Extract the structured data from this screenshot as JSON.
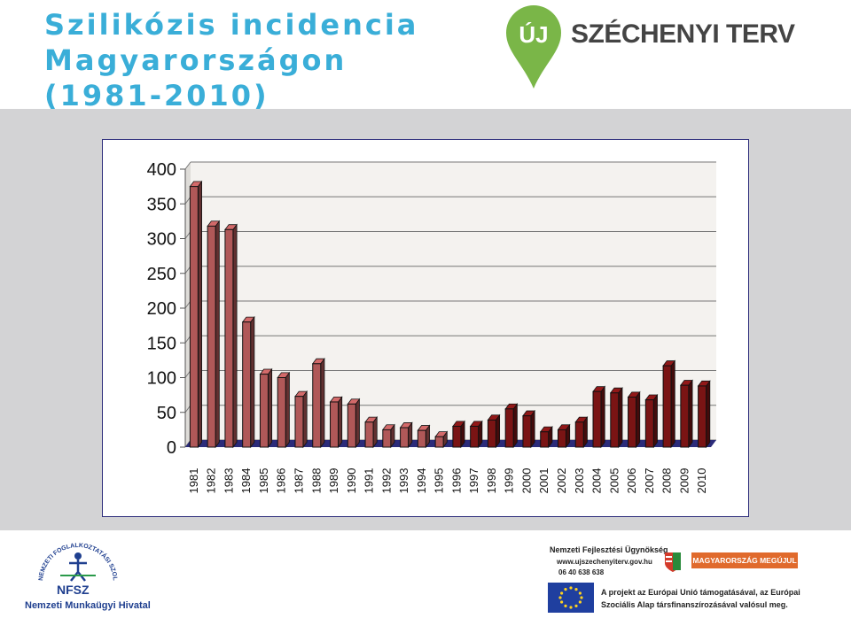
{
  "header": {
    "title_line1": "Szilikózis incidencia",
    "title_line2": "Magyarországon",
    "title_line3": "(1981-2010)",
    "title_color": "#3aaed8",
    "brand_badge": "ÚJ",
    "brand_name": "SZÉCHENYI TERV",
    "brand_color": "#7ab648"
  },
  "chart_data": {
    "type": "bar",
    "style": "3d",
    "categories": [
      "1981",
      "1982",
      "1983",
      "1984",
      "1985",
      "1986",
      "1987",
      "1988",
      "1989",
      "1990",
      "1991",
      "1992",
      "1993",
      "1994",
      "1995",
      "1996",
      "1997",
      "1998",
      "1999",
      "2000",
      "2001",
      "2002",
      "2003",
      "2004",
      "2005",
      "2006",
      "2007",
      "2008",
      "2009",
      "2010"
    ],
    "values": [
      375,
      318,
      313,
      180,
      105,
      100,
      73,
      120,
      65,
      62,
      36,
      25,
      28,
      24,
      15,
      30,
      30,
      39,
      55,
      45,
      22,
      25,
      36,
      80,
      78,
      72,
      68,
      117,
      89,
      88
    ],
    "ylim": [
      0,
      400
    ],
    "yticks": [
      0,
      50,
      100,
      150,
      200,
      250,
      300,
      350,
      400
    ],
    "grid": true,
    "colors": [
      "#b05858",
      "#b05858",
      "#b05858",
      "#b05858",
      "#b05858",
      "#b05858",
      "#b05858",
      "#b05858",
      "#b05858",
      "#b05858",
      "#b05858",
      "#b05858",
      "#b05858",
      "#b05858",
      "#b05858",
      "#7a1414",
      "#7a1414",
      "#7a1414",
      "#7a1414",
      "#7a1414",
      "#7a1414",
      "#7a1414",
      "#7a1414",
      "#7a1414",
      "#7a1414",
      "#7a1414",
      "#7a1414",
      "#7a1414",
      "#7a1414",
      "#7a1414"
    ],
    "floor_color": "#2b2b7a",
    "title": "",
    "xlabel": "",
    "ylabel": ""
  },
  "footer": {
    "left_org_short": "NFSZ",
    "left_org_name": "Nemzeti Munkaügyi Hivatal",
    "left_ring_text": "NEMZETI FOGLALKOZTATÁSI SZOLGÁLAT",
    "right_agency": "Nemzeti Fejlesztési Ügynökség",
    "right_web": "www.ujszechenyiterv.gov.hu",
    "right_phone": "06 40 638 638",
    "right_badge": "MAGYARORSZÁG MEGÚJUL",
    "right_eu_line1": "A projekt az Európai Unió támogatásával, az Európai",
    "right_eu_line2": "Szociális Alap társfinanszírozásával valósul meg."
  }
}
